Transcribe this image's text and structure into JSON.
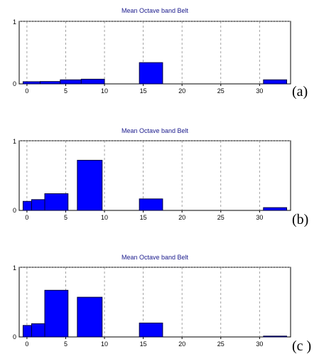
{
  "colors": {
    "bar_fill": "#0000ff",
    "bar_stroke": "#00003c",
    "title": "#1a1a8c",
    "grid": "#8c8c8c"
  },
  "chart_data": [
    {
      "type": "bar",
      "title": "Mean Octave band Belt",
      "panel_label": "(a)",
      "xlabel": "",
      "ylabel": "",
      "xlim": [
        -1,
        34
      ],
      "ylim": [
        0,
        1
      ],
      "xticks": [
        0,
        5,
        10,
        15,
        20,
        25,
        30
      ],
      "ytick_labels": [
        "1",
        "0"
      ],
      "grid": "vertical dashed",
      "bars": [
        {
          "x0": -0.5,
          "x1": 1.7,
          "value": 0.035
        },
        {
          "x0": 1.7,
          "x1": 4.3,
          "value": 0.038
        },
        {
          "x0": 4.3,
          "x1": 7.0,
          "value": 0.065
        },
        {
          "x0": 7.0,
          "x1": 10.0,
          "value": 0.075
        },
        {
          "x0": 14.5,
          "x1": 17.5,
          "value": 0.34
        },
        {
          "x0": 30.5,
          "x1": 33.5,
          "value": 0.065
        }
      ]
    },
    {
      "type": "bar",
      "title": "Mean Octave band Belt",
      "panel_label": "(b)",
      "xlabel": "",
      "ylabel": "",
      "xlim": [
        -1,
        34
      ],
      "ylim": [
        0,
        1
      ],
      "xticks": [
        0,
        5,
        10,
        15,
        20,
        25,
        30
      ],
      "ytick_labels": [
        "1",
        "0"
      ],
      "grid": "vertical dashed",
      "bars": [
        {
          "x0": -0.5,
          "x1": 0.6,
          "value": 0.13
        },
        {
          "x0": 0.6,
          "x1": 2.3,
          "value": 0.155
        },
        {
          "x0": 2.3,
          "x1": 5.3,
          "value": 0.24
        },
        {
          "x0": 6.5,
          "x1": 9.7,
          "value": 0.72
        },
        {
          "x0": 14.5,
          "x1": 17.5,
          "value": 0.165
        },
        {
          "x0": 30.5,
          "x1": 33.5,
          "value": 0.04
        }
      ]
    },
    {
      "type": "bar",
      "title": "Mean Octave band Belt",
      "panel_label": "(c )",
      "xlabel": "",
      "ylabel": "",
      "xlim": [
        -1,
        34
      ],
      "ylim": [
        0,
        1
      ],
      "xticks": [
        0,
        5,
        10,
        15,
        20,
        25,
        30
      ],
      "ytick_labels": [
        "1",
        "0"
      ],
      "grid": "vertical dashed",
      "bars": [
        {
          "x0": -0.5,
          "x1": 0.6,
          "value": 0.165
        },
        {
          "x0": 0.6,
          "x1": 2.3,
          "value": 0.19
        },
        {
          "x0": 2.3,
          "x1": 5.3,
          "value": 0.67
        },
        {
          "x0": 6.5,
          "x1": 9.7,
          "value": 0.57
        },
        {
          "x0": 14.5,
          "x1": 17.5,
          "value": 0.2
        },
        {
          "x0": 30.5,
          "x1": 33.5,
          "value": 0.012
        }
      ]
    }
  ]
}
